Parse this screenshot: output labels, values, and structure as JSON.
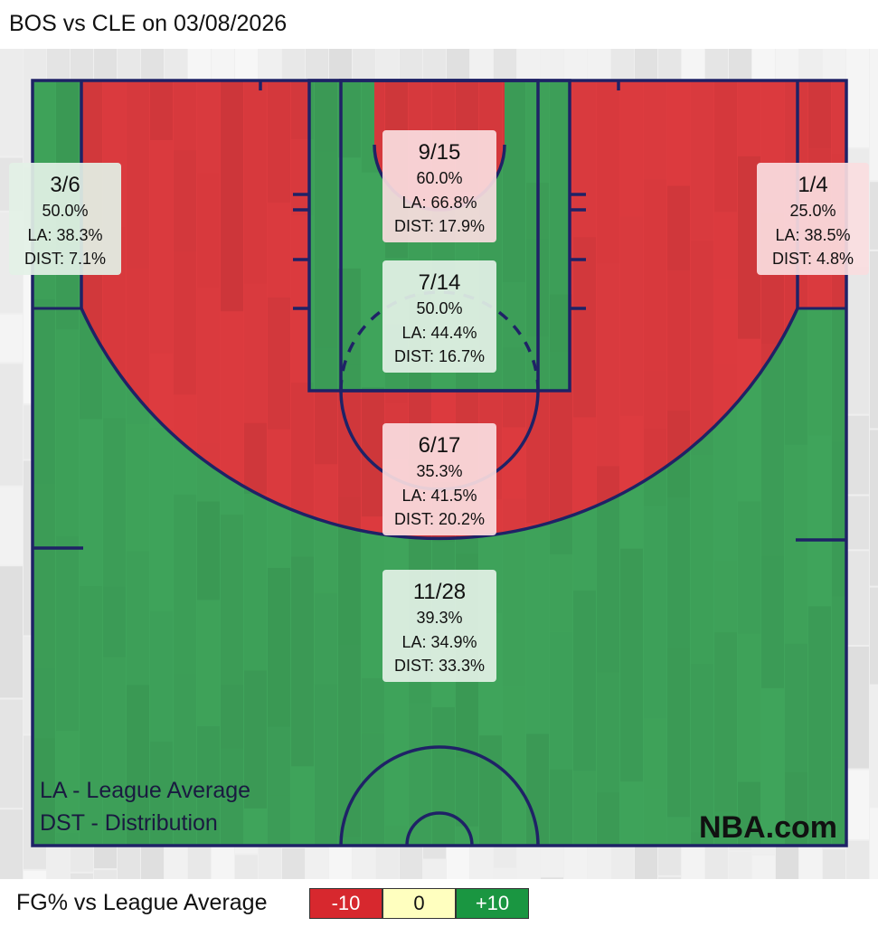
{
  "title": "BOS vs CLE on 03/08/2026",
  "chart_data": {
    "type": "heatmap",
    "subtype": "basketball-shot-chart",
    "zones": [
      {
        "zone": "left-corner-3",
        "made": 3,
        "attempts": 6,
        "label": "3/6",
        "fg_pct": "50.0%",
        "league_avg": "LA: 38.3%",
        "distribution": "DIST: 7.1%",
        "vs_league": "above"
      },
      {
        "zone": "right-corner-3",
        "made": 1,
        "attempts": 4,
        "label": "1/4",
        "fg_pct": "25.0%",
        "league_avg": "LA: 38.5%",
        "distribution": "DIST: 4.8%",
        "vs_league": "below"
      },
      {
        "zone": "restricted-area",
        "made": 9,
        "attempts": 15,
        "label": "9/15",
        "fg_pct": "60.0%",
        "league_avg": "LA: 66.8%",
        "distribution": "DIST: 17.9%",
        "vs_league": "below"
      },
      {
        "zone": "in-the-paint-non-ra",
        "made": 7,
        "attempts": 14,
        "label": "7/14",
        "fg_pct": "50.0%",
        "league_avg": "LA: 44.4%",
        "distribution": "DIST: 16.7%",
        "vs_league": "above"
      },
      {
        "zone": "mid-range",
        "made": 6,
        "attempts": 17,
        "label": "6/17",
        "fg_pct": "35.3%",
        "league_avg": "LA: 41.5%",
        "distribution": "DIST: 20.2%",
        "vs_league": "below"
      },
      {
        "zone": "above-the-break-3",
        "made": 11,
        "attempts": 28,
        "label": "11/28",
        "fg_pct": "39.3%",
        "league_avg": "LA: 34.9%",
        "distribution": "DIST: 33.3%",
        "vs_league": "above"
      }
    ],
    "notes": [
      "LA - League Average",
      "DST - Distribution"
    ],
    "watermark": "NBA.com",
    "legend": {
      "title": "FG% vs League Average",
      "items": [
        {
          "label": "-10",
          "color": "#d7282e"
        },
        {
          "label": "0",
          "color": "#ffffbf"
        },
        {
          "label": "+10",
          "color": "#1a9641"
        }
      ]
    }
  },
  "colors": {
    "above": "#3fa45b",
    "below": "#dd3b3f",
    "lines": "#1f2266",
    "box_above": "#e3f1e6",
    "box_below": "#fadde0"
  }
}
